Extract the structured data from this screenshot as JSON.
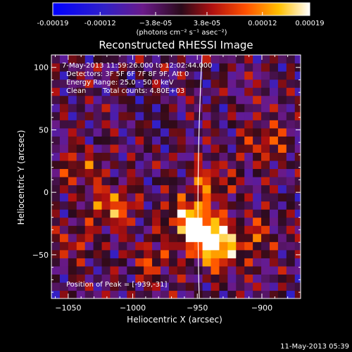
{
  "colorbar": {
    "tick_labels": [
      "-0.00019",
      "-0.00012",
      "−3.8e-05",
      "3.8e-05",
      "0.00012",
      "0.00019"
    ],
    "tick_values": [
      -0.00019,
      -0.00012,
      -3.8e-05,
      3.8e-05,
      0.00012,
      0.00019
    ],
    "range": [
      -0.00019,
      0.00019
    ],
    "units": "(photons cm⁻² s⁻¹ asec⁻²)"
  },
  "annotations": {
    "time": "7-May-2013 11:59:26.000 to 12:02:44.000",
    "detectors": "Detectors: 3F 5F 6F 7F 8F 9F, Att 0",
    "energy": "Energy Range: 25.0 - 50.0 keV",
    "clean": "Clean",
    "counts": "Total counts: 4.80E+03",
    "peak": "Position of Peak = [-939,-31]"
  },
  "footer": {
    "timestamp": "11-May-2013 05:39"
  },
  "colors": {
    "background": "#000000",
    "text": "#ffffff",
    "limb": "#ffffff"
  },
  "chart_data": {
    "type": "heatmap",
    "title": "Reconstructed RHESSI Image",
    "xlabel": "Heliocentric X (arcsec)",
    "ylabel": "Heliocentric Y (arcsec)",
    "xlim": [
      -1063,
      -870
    ],
    "ylim": [
      -85,
      110
    ],
    "xticks": [
      -1050,
      -1000,
      -950,
      -900
    ],
    "xtick_labels": [
      "−1050",
      "−1000",
      "−950",
      "−900"
    ],
    "yticks": [
      -50,
      0,
      50,
      100
    ],
    "ytick_labels": [
      "−50",
      "0",
      "50",
      "100"
    ],
    "colormap": "blue-purple-red-yellow-white",
    "peak": [
      -939,
      -31
    ],
    "sources": [
      {
        "x": -945,
        "y": -32,
        "value": 0.00019
      },
      {
        "x": -933,
        "y": -45,
        "value": 0.00017
      },
      {
        "x": -958,
        "y": -20,
        "value": 0.00014
      },
      {
        "x": -1015,
        "y": -12,
        "value": 0.00013
      },
      {
        "x": -940,
        "y": 8,
        "value": 0.0001
      },
      {
        "x": -897,
        "y": 40,
        "value": 9e-05
      },
      {
        "x": -1040,
        "y": 20,
        "value": 8e-05
      },
      {
        "x": -985,
        "y": -55,
        "value": 8e-05
      },
      {
        "x": -905,
        "y": -35,
        "value": 7e-05
      },
      {
        "x": -1045,
        "y": -40,
        "value": 6e-05
      }
    ],
    "grid": false,
    "legend": "colorbar-top"
  }
}
